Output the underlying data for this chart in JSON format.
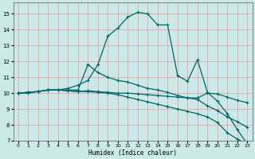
{
  "xlabel": "Humidex (Indice chaleur)",
  "bg_color": "#cce9e9",
  "grid_color": "#ee9999",
  "line_color": "#006666",
  "xlim": [
    -0.5,
    23.5
  ],
  "ylim": [
    7.0,
    15.7
  ],
  "xticks": [
    0,
    1,
    2,
    3,
    4,
    5,
    6,
    7,
    8,
    9,
    10,
    11,
    12,
    13,
    14,
    15,
    16,
    17,
    18,
    19,
    20,
    21,
    22,
    23
  ],
  "yticks": [
    7,
    8,
    9,
    10,
    11,
    12,
    13,
    14,
    15
  ],
  "lines": [
    {
      "x": [
        0,
        1,
        2,
        3,
        4,
        5,
        6,
        7,
        8,
        9,
        10,
        11,
        12,
        13,
        14,
        15,
        16,
        17,
        18,
        19,
        20,
        21,
        22,
        23
      ],
      "y": [
        10.0,
        10.0,
        10.1,
        10.2,
        10.2,
        10.3,
        10.5,
        10.8,
        11.8,
        13.6,
        14.1,
        14.8,
        15.1,
        15.0,
        14.3,
        14.3,
        11.1,
        10.75,
        12.1,
        10.05,
        9.5,
        8.7,
        7.7,
        6.8
      ]
    },
    {
      "x": [
        0,
        1,
        2,
        3,
        4,
        5,
        6,
        7,
        8,
        9,
        10,
        11,
        12,
        13,
        14,
        15,
        16,
        17,
        18,
        19,
        20,
        21,
        22,
        23
      ],
      "y": [
        10.0,
        10.05,
        10.1,
        10.2,
        10.2,
        10.2,
        10.2,
        11.8,
        11.3,
        11.0,
        10.8,
        10.7,
        10.5,
        10.3,
        10.2,
        10.05,
        9.85,
        9.7,
        9.6,
        9.2,
        8.9,
        8.5,
        8.2,
        7.85
      ]
    },
    {
      "x": [
        0,
        1,
        2,
        3,
        4,
        5,
        6,
        7,
        8,
        9,
        10,
        11,
        12,
        13,
        14,
        15,
        16,
        17,
        18,
        19,
        20,
        21,
        22,
        23
      ],
      "y": [
        10.0,
        10.05,
        10.1,
        10.2,
        10.2,
        10.15,
        10.1,
        10.15,
        10.1,
        10.05,
        10.0,
        10.0,
        9.95,
        9.9,
        9.85,
        9.8,
        9.75,
        9.7,
        9.7,
        10.0,
        9.95,
        9.75,
        9.55,
        9.4
      ]
    },
    {
      "x": [
        0,
        1,
        2,
        3,
        4,
        5,
        6,
        7,
        8,
        9,
        10,
        11,
        12,
        13,
        14,
        15,
        16,
        17,
        18,
        19,
        20,
        21,
        22,
        23
      ],
      "y": [
        10.0,
        10.05,
        10.1,
        10.2,
        10.2,
        10.15,
        10.1,
        10.1,
        10.05,
        10.0,
        9.9,
        9.75,
        9.6,
        9.45,
        9.3,
        9.15,
        9.0,
        8.85,
        8.7,
        8.5,
        8.15,
        7.5,
        7.1,
        6.8
      ]
    }
  ]
}
